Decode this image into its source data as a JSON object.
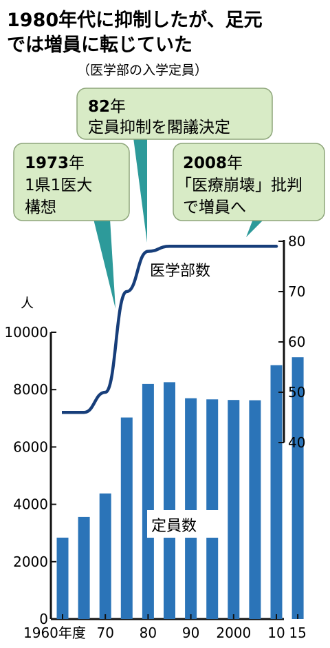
{
  "title_line1": "1980年代に抑制したが、足元",
  "title_line2": "では増員に転じていた",
  "subtitle": "（医学部の入学定員）",
  "callouts": [
    {
      "year": "1973",
      "year_suffix": "年",
      "lines": [
        "1県1医大",
        "構想"
      ]
    },
    {
      "year": "82",
      "year_suffix": "年",
      "lines": [
        "定員抑制を閣議決定"
      ]
    },
    {
      "year": "2008",
      "year_suffix": "年",
      "lines": [
        "「医療崩壊」批判",
        "で増員へ"
      ]
    }
  ],
  "colors": {
    "bar": "#2b74b8",
    "line": "#173e7a",
    "callout_fill": "#d8ebc6",
    "callout_stroke": "#8da57a",
    "pointer": "#2d9a9a",
    "axis": "#111111"
  },
  "chart_data": {
    "type": "bar+line",
    "left_axis": {
      "unit": "人",
      "ylim": [
        0,
        10000
      ],
      "ticks": [
        "0",
        "2000",
        "4000",
        "6000",
        "8000",
        "10000"
      ]
    },
    "right_axis": {
      "ylim": [
        40,
        80
      ],
      "ticks": [
        "40",
        "50",
        "60",
        "70",
        "80"
      ]
    },
    "x_tick_labels": [
      "1960年度",
      "70",
      "80",
      "90",
      "2000",
      "10",
      "15"
    ],
    "x_tick_years": [
      1960,
      1970,
      1980,
      1990,
      2000,
      2010,
      2015
    ],
    "bars": {
      "name": "定員数",
      "years": [
        1960,
        1965,
        1970,
        1975,
        1980,
        1985,
        1990,
        1995,
        2000,
        2005,
        2010,
        2015
      ],
      "values": [
        2840,
        3560,
        4380,
        7030,
        8200,
        8260,
        7700,
        7660,
        7640,
        7630,
        8850,
        9130
      ]
    },
    "line": {
      "name": "医学部数",
      "years": [
        1960,
        1965,
        1970,
        1975,
        1980,
        1985,
        1990,
        1995,
        2000,
        2005,
        2010,
        2015
      ],
      "values": [
        46,
        46,
        50,
        70,
        78,
        79,
        79,
        79,
        79,
        79,
        79,
        79
      ]
    }
  }
}
